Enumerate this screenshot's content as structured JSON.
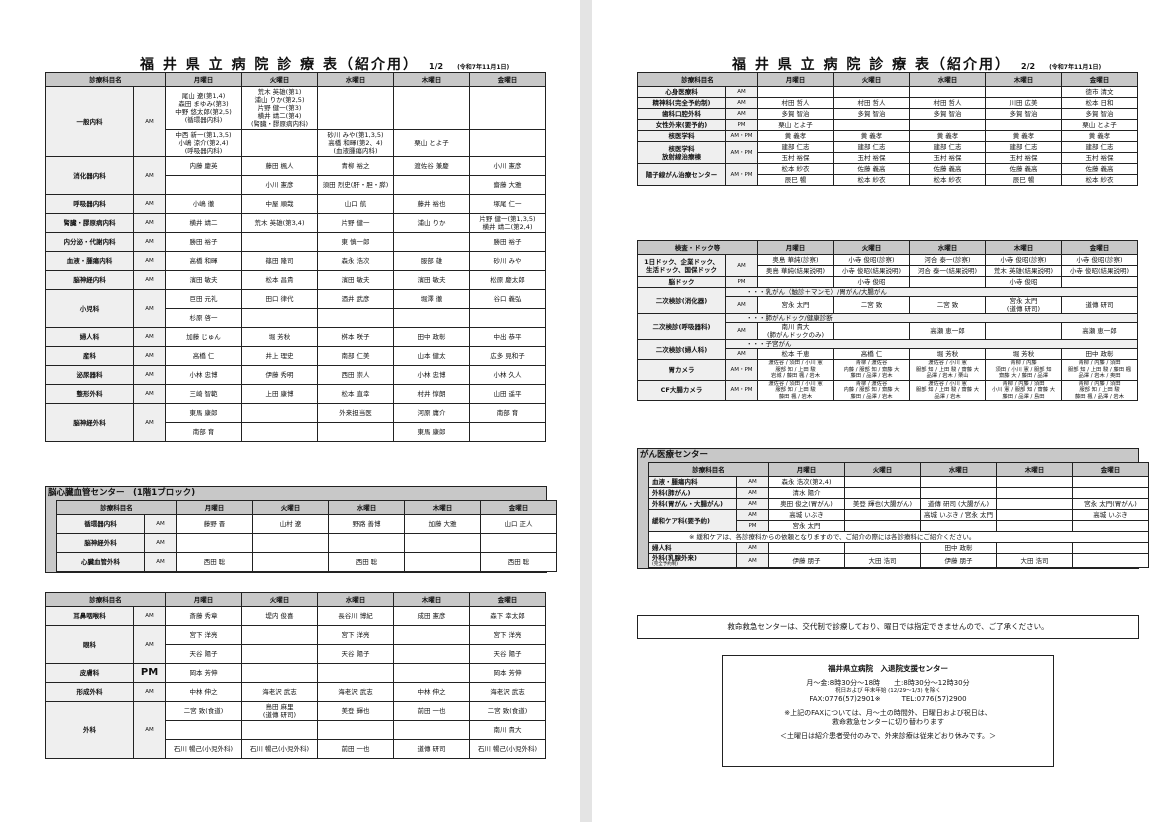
{
  "page1": {
    "title": "福 井 県 立 病 院 診 療 表（紹介用）",
    "page_no": "1/2",
    "date": "(令和7年11月1日)"
  },
  "page2": {
    "title": "福 井 県 立 病 院 診 療 表（紹介用）",
    "page_no": "2/2",
    "date": "(令和7年11月1日)"
  },
  "tables": {
    "l1": {
      "header": [
        "診療科目名",
        "月曜日",
        "火曜日",
        "水曜日",
        "木曜日",
        "金曜日"
      ],
      "rows": [
        [
          {
            "t": "一般内科",
            "rs": 2,
            "c": "nm"
          },
          {
            "t": "AM",
            "rs": 2,
            "c": "ap"
          },
          "尾山 遼(第1,4)\n森田 まゆみ(第3)\n中野 悠太郎(第2,5)\n(循環器内科)",
          "荒木 英雄(第1)\n浦山 りか(第2,5)\n片野 健一(第3)\n横井 靖二(第4)\n(腎臓・膠原病内科)",
          "",
          "",
          ""
        ],
        [
          "中西 新一(第1,3,5)\n小嶋 涼介(第2,4)\n(呼吸器内科)",
          "",
          "砂川 みや(第1,3,5)\n高橋 和暉(第2、4)\n(血液腫瘍内科)",
          "栗山 とよ子",
          ""
        ],
        [
          {
            "t": "消化器内科",
            "rs": 2,
            "c": "nm"
          },
          {
            "t": "AM",
            "rs": 2,
            "c": "ap"
          },
          "内藤 慶英",
          "藤田 楓人",
          "青柳 裕之",
          "渡佐谷 兼慶",
          "小川 憲彦"
        ],
        [
          "",
          "小川 憲彦",
          "須田 烈史(肝・胆・膵)",
          "",
          "齋藤 大雅"
        ],
        [
          {
            "t": "呼吸器内科",
            "c": "nm"
          },
          {
            "t": "AM",
            "c": "ap"
          },
          "小嶋 徹",
          "中屋 順哉",
          "山口 航",
          "藤井 裕也",
          "塚尾 仁一"
        ],
        [
          {
            "t": "腎臓・膠原病内科",
            "c": "nm"
          },
          {
            "t": "AM",
            "c": "ap"
          },
          "横井 靖二",
          "荒木 英雄(第3,4)",
          "片野 健一",
          "浦山 りか",
          "片野 健一(第1,3,5)\n横井 靖二(第2,4)"
        ],
        [
          {
            "t": "内分泌・代謝内科",
            "c": "nm"
          },
          {
            "t": "AM",
            "c": "ap"
          },
          "勝田 裕子",
          "",
          "東 慎一郎",
          "",
          "勝田 裕子"
        ],
        [
          {
            "t": "血液・腫瘍内科",
            "c": "nm"
          },
          {
            "t": "AM",
            "c": "ap"
          },
          "高橋 和暉",
          "篠田 隆司",
          "森永 浩次",
          "服部 雄",
          "砂川 みや"
        ],
        [
          {
            "t": "脳神経内科",
            "c": "nm"
          },
          {
            "t": "AM",
            "c": "ap"
          },
          "濱田 敏夫",
          "松本 昌貴",
          "濱田 敏夫",
          "濱田 敏夫",
          "松原 慶太郎"
        ],
        [
          {
            "t": "小児科",
            "rs": 2,
            "c": "nm"
          },
          {
            "t": "AM",
            "rs": 2,
            "c": "ap"
          },
          "巨田 元礼",
          "田口 律代",
          "酒井 武彦",
          "堀澤 徹",
          "谷口 義弘"
        ],
        [
          "杉原 啓一",
          "",
          "",
          "",
          ""
        ],
        [
          {
            "t": "婦人科",
            "c": "nm"
          },
          {
            "t": "AM",
            "c": "ap"
          },
          "加藤 じゅん",
          "堀 芳秋",
          "桝本 咲子",
          "田中 政彰",
          "中出 恭平"
        ],
        [
          {
            "t": "産科",
            "c": "nm"
          },
          {
            "t": "AM",
            "c": "ap"
          },
          "高橋 仁",
          "井上 理史",
          "南部 仁美",
          "山本 健太",
          "広多 見和子"
        ],
        [
          {
            "t": "泌尿器科",
            "c": "nm"
          },
          {
            "t": "AM",
            "c": "ap"
          },
          "小林 忠博",
          "伊藤 秀明",
          "西田 崇人",
          "小林 忠博",
          "小林 久人"
        ],
        [
          {
            "t": "整形外科",
            "c": "nm"
          },
          {
            "t": "AM",
            "c": "ap"
          },
          "三崎 智範",
          "上田 康博",
          "松本 直幸",
          "村井 惇朗",
          "山田 遥平"
        ],
        [
          {
            "t": "脳神経外科",
            "rs": 2,
            "c": "nm"
          },
          {
            "t": "AM",
            "rs": 2,
            "c": "ap"
          },
          "東馬 康郎",
          "",
          "外来担当医",
          "河原 庸介",
          "南部 育"
        ],
        [
          "南部 育",
          "",
          "",
          "東馬 康郎",
          ""
        ]
      ]
    },
    "l2": {
      "section_title": "脳心臓血管センター　(1階1ブロック)",
      "header": [
        "診療科目名",
        "月曜日",
        "火曜日",
        "水曜日",
        "木曜日",
        "金曜日"
      ],
      "rows": [
        [
          {
            "t": "循環器内科",
            "c": "nm"
          },
          {
            "t": "AM",
            "c": "ap"
          },
          "藤野 晋",
          "山村 遼",
          "野路 善博",
          "加藤 大雅",
          "山口 正人"
        ],
        [
          {
            "t": "脳神経外科",
            "c": "nm"
          },
          {
            "t": "AM",
            "c": "ap"
          },
          "",
          "",
          "",
          "",
          ""
        ],
        [
          {
            "t": "心臓血管外科",
            "c": "nm"
          },
          {
            "t": "AM",
            "c": "ap"
          },
          "西田 聡",
          "",
          "西田 聡",
          "",
          "西田 聡"
        ]
      ]
    },
    "l3": {
      "header": [
        "診療科目名",
        "月曜日",
        "火曜日",
        "水曜日",
        "木曜日",
        "金曜日"
      ],
      "rows": [
        [
          {
            "t": "耳鼻咽喉科",
            "c": "nm"
          },
          {
            "t": "AM",
            "c": "ap"
          },
          "斎藤 秀章",
          "堤内 俊喜",
          "長谷川 博紀",
          "成田 憲彦",
          "森下 幸太郎"
        ],
        [
          {
            "t": "眼科",
            "rs": 2,
            "c": "nm"
          },
          {
            "t": "AM",
            "rs": 2,
            "c": "ap"
          },
          "宮下 洋亮",
          "",
          "宮下 洋亮",
          "",
          "宮下 洋亮"
        ],
        [
          "天谷 陽子",
          "",
          "天谷 陽子",
          "",
          "天谷 陽子"
        ],
        [
          {
            "t": "皮膚科",
            "c": "nm"
          },
          {
            "t": "PM",
            "c": "ap big"
          },
          "岡本 芳伸",
          "",
          "",
          "",
          "岡本 芳伸"
        ],
        [
          {
            "t": "形成外科",
            "c": "nm"
          },
          {
            "t": "AM",
            "c": "ap"
          },
          "中林 伸之",
          "海老沢 武志",
          "海老沢 武志",
          "中林 伸之",
          "海老沢 武志"
        ],
        [
          {
            "t": "外科",
            "rs": 3,
            "c": "nm"
          },
          {
            "t": "AM",
            "rs": 3,
            "c": "ap"
          },
          "二宮 致(食道)",
          "島田 麻里\n(道傳 研司)",
          "美登 輝也",
          "前田 一也",
          "二宮 致(食道)"
        ],
        [
          "",
          "",
          "",
          "",
          "南川 貴大"
        ],
        [
          "石川 暢己(小児外科)",
          "石川 暢己(小児外科)",
          "前田 一也",
          "道傳 研司",
          "石川 暢己(小児外科)"
        ]
      ]
    },
    "r1": {
      "header": [
        "診療科目名",
        "月曜日",
        "火曜日",
        "水曜日",
        "木曜日",
        "金曜日"
      ],
      "rows": [
        [
          {
            "t": "心身医療科",
            "c": "nm"
          },
          {
            "t": "AM",
            "c": "ap"
          },
          "",
          "",
          "",
          "",
          "徳市 清文"
        ],
        [
          {
            "t": "精神科(完全予約制)",
            "c": "nm"
          },
          {
            "t": "AM",
            "c": "ap"
          },
          "村田 哲人",
          "村田 哲人",
          "村田 哲人",
          "川田 広美",
          "松本 日和"
        ],
        [
          {
            "t": "歯科口腔外科",
            "c": "nm"
          },
          {
            "t": "AM",
            "c": "ap"
          },
          "多賀 智治",
          "多賀 智治",
          "多賀 智治",
          "多賀 智治",
          "多賀 智治"
        ],
        [
          {
            "t": "女性外来(要予約)",
            "c": "nm"
          },
          {
            "t": "PM",
            "c": "ap"
          },
          "栗山 とよ子",
          "",
          "",
          "",
          "栗山 とよ子"
        ],
        [
          {
            "t": "核医学科",
            "c": "nm"
          },
          {
            "t": "AM・PM",
            "c": "ap"
          },
          "黄 義孝",
          "黄 義孝",
          "黄 義孝",
          "黄 義孝",
          "黄 義孝"
        ],
        [
          {
            "t": "核医学科\n放射線治療棟",
            "rs": 2,
            "c": "nm"
          },
          {
            "t": "AM・PM",
            "rs": 2,
            "c": "ap"
          },
          "建部 仁志",
          "建部 仁志",
          "建部 仁志",
          "建部 仁志",
          "建部 仁志"
        ],
        [
          "玉村 裕保",
          "玉村 裕保",
          "玉村 裕保",
          "玉村 裕保",
          "玉村 裕保"
        ],
        [
          {
            "t": "陽子線がん治療センター",
            "rs": 2,
            "c": "nm"
          },
          {
            "t": "AM・PM",
            "rs": 2,
            "c": "ap"
          },
          "松本 紗衣",
          "佐藤 義高",
          "佐藤 義高",
          "佐藤 義高",
          "佐藤 義高"
        ],
        [
          "辰巳 暢",
          "松本 紗衣",
          "松本 紗衣",
          "辰巳 暢",
          "松本 紗衣"
        ]
      ]
    },
    "r2": {
      "header": [
        "検査・ドック等",
        "月曜日",
        "火曜日",
        "水曜日",
        "木曜日",
        "金曜日"
      ],
      "rows": [
        [
          {
            "t": "1日ドック、企業ドック、\n生活ドック、国保ドック",
            "rs": 2,
            "c": "nm"
          },
          {
            "t": "AM",
            "rs": 2,
            "c": "ap"
          },
          "奥島 華純(診察)",
          "小寺 俊昭(診察)",
          "河合 泰一(診察)",
          "小寺 俊昭(診察)",
          "小寺 俊昭(診察)"
        ],
        [
          "奥島 華純(結果説明)",
          "小寺 俊昭(結果説明)",
          "河合 泰一(結果説明)",
          "荒木 英雄(結果説明)",
          "小寺 俊昭(結果説明)"
        ],
        [
          {
            "t": "脳ドック",
            "c": "nm"
          },
          {
            "t": "PM",
            "c": "ap"
          },
          "",
          "小寺 俊昭",
          "",
          "小寺 俊昭",
          ""
        ],
        [
          {
            "t": "二次検診(消化器)",
            "rs": 2,
            "c": "nm"
          },
          {
            "t": "・・・乳がん（触診＋マンモ）/胃がん/大腸がん",
            "cs": 6,
            "c": "note"
          }
        ],
        [
          {
            "t": "AM",
            "c": "ap"
          },
          "宮永 太門",
          "二宮 致",
          "二宮 致",
          "宮永 太門\n(道傳 研司)",
          "道傳 研司"
        ],
        [
          {
            "t": "二次検診(呼吸器科)",
            "rs": 2,
            "c": "nm"
          },
          {
            "t": "・・・肺がんドック/健康診断",
            "cs": 6,
            "c": "note"
          }
        ],
        [
          {
            "t": "AM",
            "c": "ap"
          },
          "南川 貴大\n(肺がんドックのみ)",
          "",
          "高瀬 恵一郎",
          "",
          "高瀬 恵一郎"
        ],
        [
          {
            "t": "二次検診(婦人科)",
            "rs": 2,
            "c": "nm"
          },
          {
            "t": "・・・子宮がん",
            "cs": 6,
            "c": "note"
          }
        ],
        [
          {
            "t": "AM",
            "c": "ap"
          },
          "松本 千恵",
          "高橋 仁",
          "堀 芳秋",
          "堀 芳秋",
          "田中 政彰"
        ],
        [
          {
            "t": "胃カメラ",
            "c": "nm"
          },
          {
            "t": "AM・PM",
            "c": "ap"
          },
          {
            "t": "渡佐谷 / 須田 / 小川 憲\n服部 知 / 上田 駿\n岩城 / 藤田 楓 / 岩木",
            "c": "small"
          },
          {
            "t": "青柳 / 渡佐谷\n内藤 / 服部 知 / 齋藤 大\n藤田 / 品澤 / 岩木",
            "c": "small"
          },
          {
            "t": "渡佐谷 / 小川 憲\n服部 知 / 上田 駿 / 齋藤 大\n品澤 / 岩木 / 栗山",
            "c": "small"
          },
          {
            "t": "青柳 / 内藤\n須田 / 小川 憲 / 服部 知\n齋藤 大 / 藤田 / 品澤",
            "c": "small"
          },
          {
            "t": "青柳 / 内藤 / 須田\n服部 知 / 上田 駿 / 藤田 楓\n品澤 / 岩木 / 奥田",
            "c": "small"
          }
        ],
        [
          {
            "t": "CF大腸カメラ",
            "c": "nm"
          },
          {
            "t": "AM・PM",
            "c": "ap"
          },
          {
            "t": "渡佐谷 / 須田 / 小川 憲\n服部 知 / 上田 駿\n藤田 楓 / 岩木",
            "c": "small"
          },
          {
            "t": "青柳 / 渡佐谷\n内藤 / 服部 知 / 齋藤 大\n藤田 / 品澤 / 岩木",
            "c": "small"
          },
          {
            "t": "渡佐谷 / 小川 憲\n服部 知 / 上田 駿 / 齋藤 大\n品澤 / 岩木",
            "c": "small"
          },
          {
            "t": "青柳 / 内藤 / 須田\n小川 憲 / 服部 知 / 齋藤 大\n藤田 / 品澤 / 島田",
            "c": "small"
          },
          {
            "t": "青柳 / 内藤 / 須田\n服部 知 / 上田 駿\n藤田 楓 / 品澤 / 岩木",
            "c": "small"
          }
        ]
      ]
    },
    "r3": {
      "section_title": "がん医療センター",
      "header": [
        "診療科目名",
        "月曜日",
        "火曜日",
        "水曜日",
        "木曜日",
        "金曜日"
      ],
      "rows": [
        [
          {
            "t": "血液・腫瘍内科",
            "c": "nm left"
          },
          {
            "t": "AM",
            "c": "ap"
          },
          "森永 浩次(第2,4)",
          "",
          "",
          "",
          ""
        ],
        [
          {
            "t": "外科(肺がん)",
            "c": "nm left"
          },
          {
            "t": "AM",
            "c": "ap"
          },
          "清水 陽介",
          "",
          "",
          "",
          ""
        ],
        [
          {
            "t": "外科(胃がん・大腸がん)",
            "c": "nm left"
          },
          {
            "t": "AM",
            "c": "ap"
          },
          "奥田 俊之(胃がん)",
          "美登 輝也(大腸がん)",
          "道傳 研司 (大腸がん)",
          "",
          "宮永 太門(胃がん)"
        ],
        [
          {
            "t": "緩和ケア科(要予約)",
            "rs": 2,
            "c": "nm left"
          },
          {
            "t": "AM",
            "c": "ap"
          },
          "高城 いぶき",
          "",
          "高城 いぶき / 宮永 太門",
          "",
          "高城 いぶき"
        ],
        [
          {
            "t": "PM",
            "c": "ap"
          },
          "宮永 太門",
          "",
          "",
          "",
          ""
        ],
        [
          {
            "t": "※ 緩和ケアは、各診療科からの依頼となりますので、ご紹介の際には各診療科にご紹介ください。",
            "cs": 7,
            "c": "lnote"
          }
        ],
        [
          {
            "t": "婦人科",
            "c": "nm left"
          },
          {
            "t": "AM",
            "c": "ap"
          },
          "",
          "",
          "田中 政彰",
          "",
          ""
        ],
        [
          {
            "t": "外科(乳腺外来)",
            "sub": "(完全予約制)",
            "c": "nm left"
          },
          {
            "t": "AM",
            "c": "ap"
          },
          "伊藤 朋子",
          "大田 浩司",
          "伊藤 朋子",
          "大田 浩司",
          ""
        ]
      ]
    }
  },
  "emergency_notice": "救命救急センターは、交代制で診療しており、曜日では指定できませんので、ご了承ください。",
  "support_center": {
    "name": "福井県立病院　入退院支援センター",
    "hours": "月～金:8時30分～18時　　土:8時30分～12時30分",
    "holidays": "祝日および 年末年始 (12/29～1/3) を除く",
    "fax": "FAX:0776(57)2901※",
    "tel": "TEL:0776(57)2900",
    "fax_note_1": "※上記のFAXについては、月～土の時間外、日曜日および祝日は、",
    "fax_note_2": "救命救急センターに切り替わります",
    "saturday_note": "＜土曜日は紹介患者受付のみで、外来診療は従来どおり休みです。＞"
  }
}
